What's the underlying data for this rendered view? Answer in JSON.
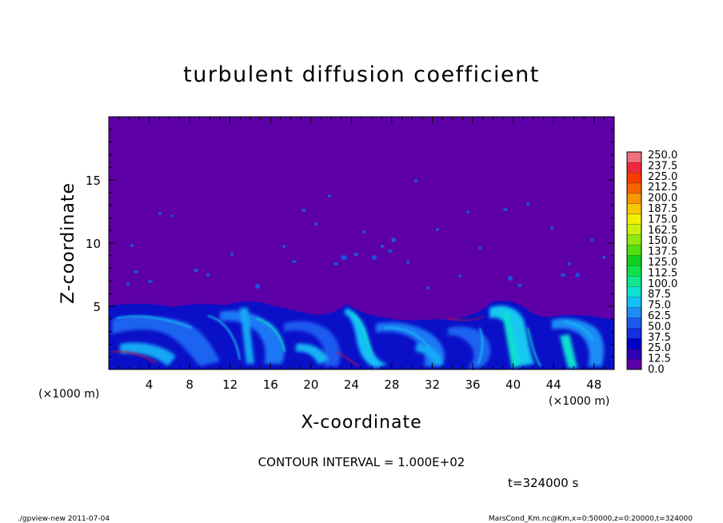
{
  "chart_data": {
    "type": "heatmap",
    "title": "turbulent diffusion coefficient",
    "xlabel": "X-coordinate",
    "ylabel": "Z-coordinate",
    "x_unit": "(×1000 m)",
    "y_unit": "(×1000 m)",
    "xlim": [
      0,
      50
    ],
    "ylim": [
      0,
      20
    ],
    "x_ticks": [
      4,
      8,
      12,
      16,
      20,
      24,
      28,
      32,
      36,
      40,
      44,
      48
    ],
    "y_ticks": [
      5,
      10,
      15
    ],
    "colorbar": {
      "levels": [
        "0.0",
        "12.5",
        "25.0",
        "37.5",
        "50.0",
        "62.5",
        "75.0",
        "87.5",
        "100.0",
        "112.5",
        "125.0",
        "137.5",
        "150.0",
        "162.5",
        "175.0",
        "187.5",
        "200.0",
        "212.5",
        "225.0",
        "237.5",
        "250.0"
      ],
      "colors": [
        "#5d00a8",
        "#2e00b4",
        "#0000c8",
        "#1430e0",
        "#1e5af0",
        "#1e8cf5",
        "#14c0f5",
        "#10e0d0",
        "#10e890",
        "#10e050",
        "#10d020",
        "#50e010",
        "#90e810",
        "#c8f010",
        "#f0f000",
        "#f8c800",
        "#f89600",
        "#f86400",
        "#f83c00",
        "#f0283c",
        "#f07080"
      ]
    },
    "background_value_color": "#5d00a8",
    "contour_interval": "CONTOUR INTERVAL = 1.000E+02",
    "time": "t=324000 s"
  },
  "footer": {
    "left": "./gpview-new   2011-07-04",
    "right": "MarsCond_Km.nc@Km,x=0:50000,z=0:20000,t=324000"
  }
}
